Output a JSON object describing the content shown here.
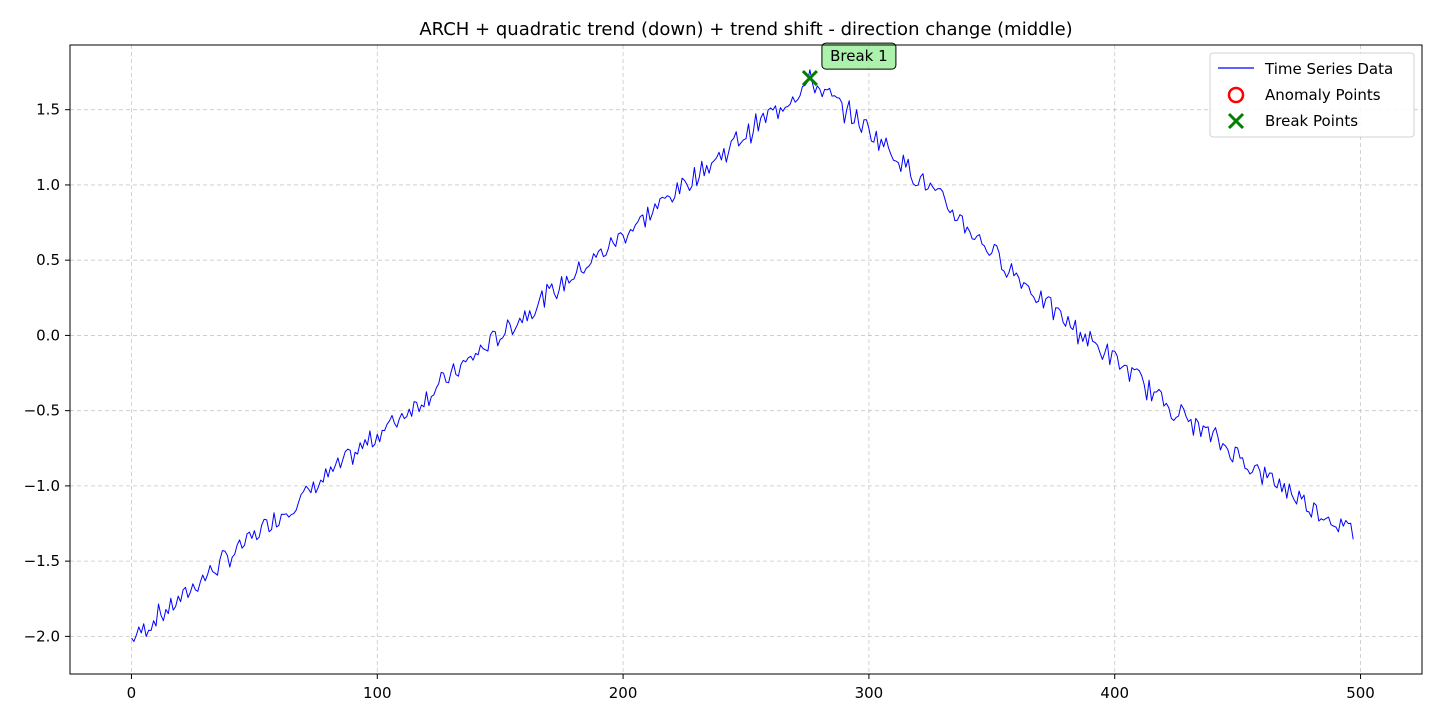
{
  "chart_data": {
    "type": "line",
    "title": "ARCH + quadratic trend (down) + trend shift - direction change (middle)",
    "xlabel": "",
    "ylabel": "",
    "xlim": [
      -25,
      525
    ],
    "ylim": [
      -2.25,
      1.93
    ],
    "grid": true,
    "x_ticks": [
      0,
      100,
      200,
      300,
      400,
      500
    ],
    "y_ticks": [
      -2.0,
      -1.5,
      -1.0,
      -0.5,
      0.0,
      0.5,
      1.0,
      1.5
    ],
    "x_tick_labels": [
      "0",
      "100",
      "200",
      "300",
      "400",
      "500"
    ],
    "y_tick_labels": [
      "−2.0",
      "−1.5",
      "−1.0",
      "−0.5",
      "0.0",
      "0.5",
      "1.0",
      "1.5"
    ],
    "series": [
      {
        "name": "Time Series Data",
        "color": "#0000ff",
        "x": [
          0,
          10,
          20,
          30,
          40,
          50,
          60,
          70,
          80,
          90,
          100,
          110,
          120,
          130,
          140,
          150,
          160,
          170,
          180,
          190,
          200,
          210,
          220,
          230,
          240,
          250,
          260,
          270,
          276,
          280,
          290,
          300,
          310,
          320,
          330,
          340,
          350,
          360,
          370,
          380,
          390,
          400,
          410,
          420,
          430,
          440,
          450,
          460,
          470,
          480,
          490,
          497
        ],
        "y": [
          -2.02,
          -1.88,
          -1.75,
          -1.6,
          -1.47,
          -1.33,
          -1.2,
          -1.07,
          -0.93,
          -0.8,
          -0.66,
          -0.53,
          -0.4,
          -0.27,
          -0.13,
          0.0,
          0.14,
          0.27,
          0.4,
          0.53,
          0.67,
          0.8,
          0.94,
          1.07,
          1.2,
          1.34,
          1.47,
          1.6,
          1.69,
          1.64,
          1.5,
          1.37,
          1.21,
          1.05,
          0.89,
          0.72,
          0.56,
          0.4,
          0.24,
          0.1,
          -0.04,
          -0.16,
          -0.3,
          -0.44,
          -0.56,
          -0.68,
          -0.8,
          -0.92,
          -1.02,
          -1.14,
          -1.24,
          -1.31
        ]
      }
    ],
    "anomalies": {
      "name": "Anomaly Points",
      "color": "#ff0000",
      "points": []
    },
    "breaks": {
      "name": "Break Points",
      "color": "#008000",
      "points": [
        {
          "x": 276,
          "y": 1.71,
          "label": "Break 1"
        }
      ]
    },
    "legend": {
      "position": "top-right",
      "entries": [
        "Time Series Data",
        "Anomaly Points",
        "Break Points"
      ]
    }
  }
}
